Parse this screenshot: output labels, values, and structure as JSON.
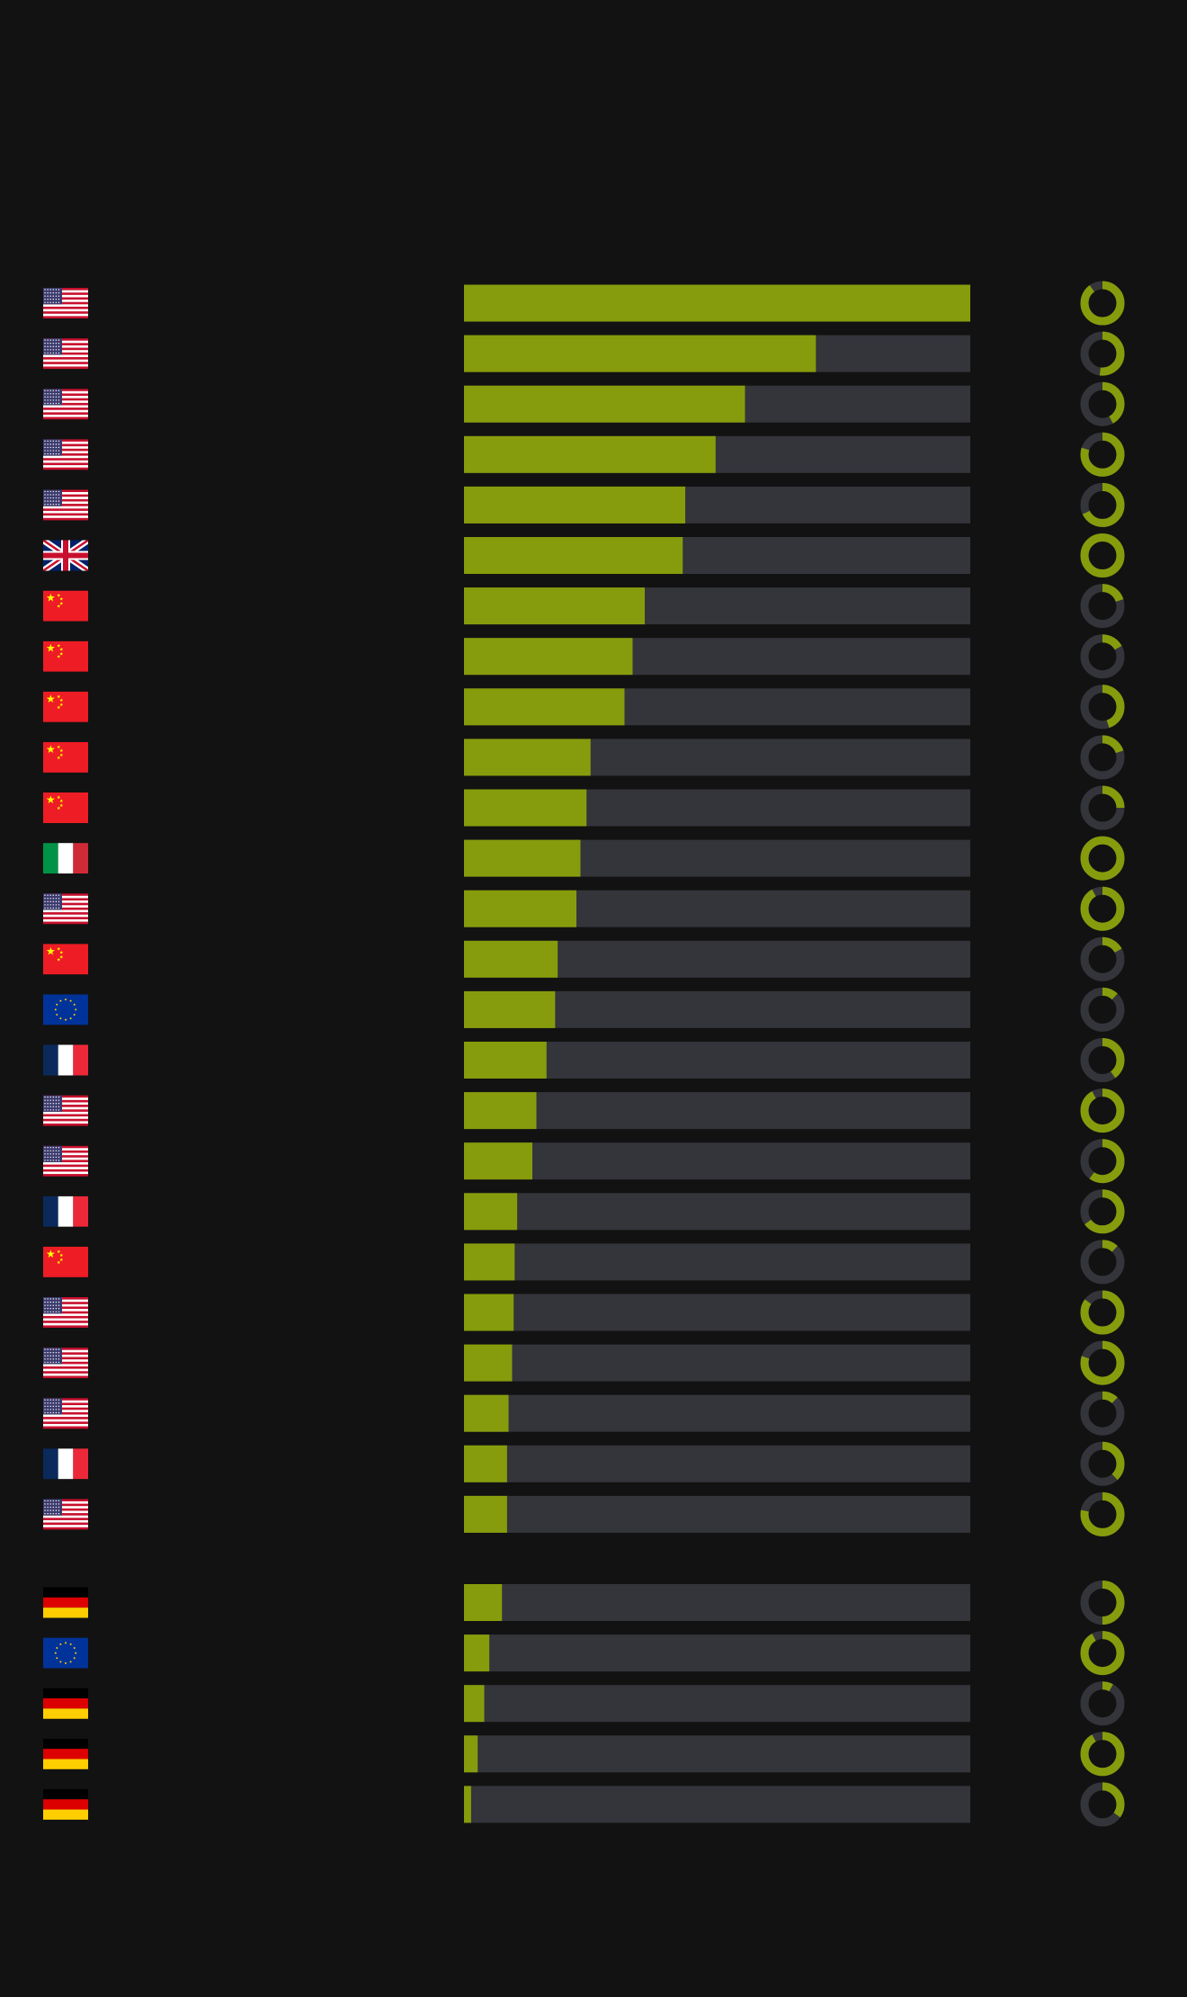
{
  "colors": {
    "background": "#121212",
    "bar_fill": "#879c0c",
    "bar_track": "#34343b",
    "ring_fill": "#879c0c",
    "ring_track": "#34343b"
  },
  "chart_data": {
    "type": "bar",
    "orientation": "horizontal",
    "title": "",
    "xlabel": "",
    "ylabel": "",
    "xlim": [
      0,
      1
    ],
    "grid": false,
    "legend": "none",
    "groups": [
      {
        "rows": [
          {
            "flag": "us",
            "value": 1.0,
            "ring": 0.9
          },
          {
            "flag": "us",
            "value": 0.695,
            "ring": 0.52
          },
          {
            "flag": "us",
            "value": 0.555,
            "ring": 0.42
          },
          {
            "flag": "us",
            "value": 0.497,
            "ring": 0.8
          },
          {
            "flag": "us",
            "value": 0.437,
            "ring": 0.68
          },
          {
            "flag": "gb",
            "value": 0.432,
            "ring": 1.0
          },
          {
            "flag": "cn",
            "value": 0.357,
            "ring": 0.2
          },
          {
            "flag": "cn",
            "value": 0.333,
            "ring": 0.17
          },
          {
            "flag": "cn",
            "value": 0.317,
            "ring": 0.45
          },
          {
            "flag": "cn",
            "value": 0.25,
            "ring": 0.2
          },
          {
            "flag": "cn",
            "value": 0.242,
            "ring": 0.25
          },
          {
            "flag": "it",
            "value": 0.23,
            "ring": 1.0
          },
          {
            "flag": "us",
            "value": 0.222,
            "ring": 0.92
          },
          {
            "flag": "cn",
            "value": 0.185,
            "ring": 0.17
          },
          {
            "flag": "eu",
            "value": 0.18,
            "ring": 0.12
          },
          {
            "flag": "fr",
            "value": 0.163,
            "ring": 0.4
          },
          {
            "flag": "us",
            "value": 0.143,
            "ring": 0.92
          },
          {
            "flag": "us",
            "value": 0.135,
            "ring": 0.6
          },
          {
            "flag": "fr",
            "value": 0.105,
            "ring": 0.65
          },
          {
            "flag": "cn",
            "value": 0.1,
            "ring": 0.12
          },
          {
            "flag": "us",
            "value": 0.098,
            "ring": 0.85
          },
          {
            "flag": "us",
            "value": 0.095,
            "ring": 0.8
          },
          {
            "flag": "us",
            "value": 0.088,
            "ring": 0.12
          },
          {
            "flag": "fr",
            "value": 0.085,
            "ring": 0.38
          },
          {
            "flag": "us",
            "value": 0.085,
            "ring": 0.78
          }
        ]
      },
      {
        "rows": [
          {
            "flag": "de",
            "value": 0.075,
            "ring": 0.5
          },
          {
            "flag": "eu",
            "value": 0.05,
            "ring": 0.92
          },
          {
            "flag": "de",
            "value": 0.04,
            "ring": 0.08
          },
          {
            "flag": "de",
            "value": 0.027,
            "ring": 0.92
          },
          {
            "flag": "de",
            "value": 0.014,
            "ring": 0.35
          }
        ]
      }
    ]
  }
}
